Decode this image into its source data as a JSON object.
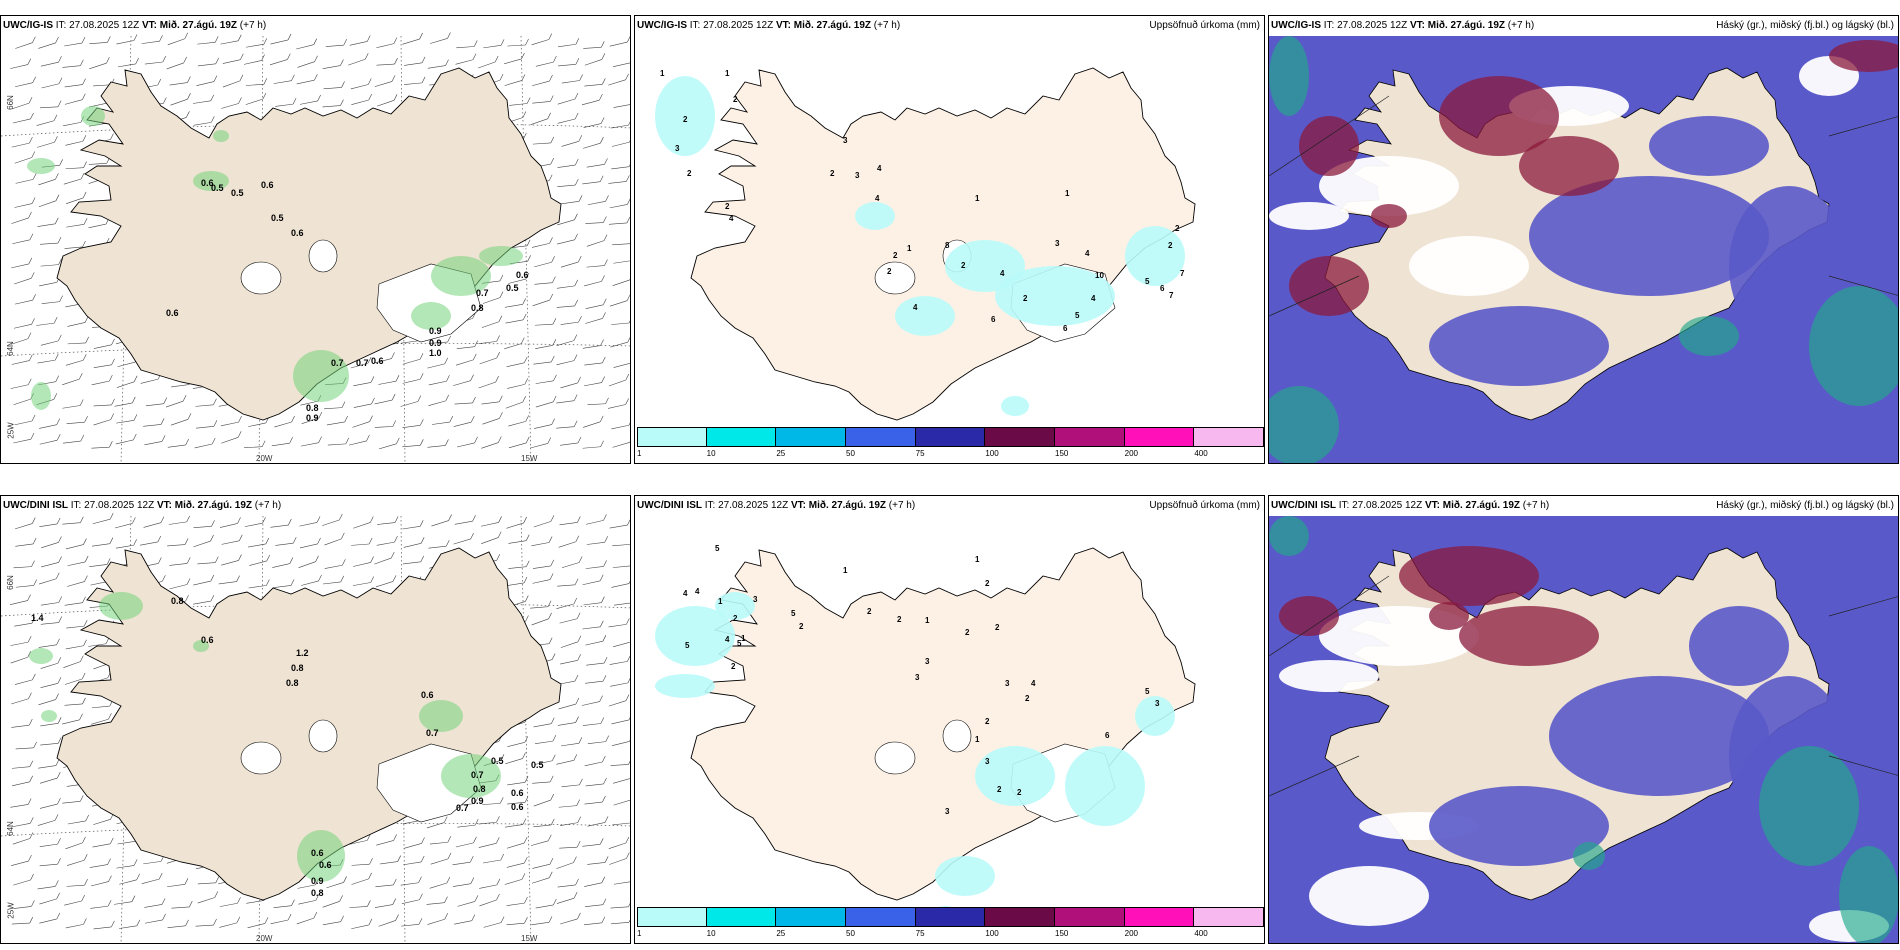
{
  "rows": [
    {
      "model": "UWC/IG-IS",
      "init_label": "IT:",
      "init_time": "27.08.2025 12Z",
      "valid_label": "VT:",
      "valid_time": "Mið. 27.ágú. 19Z",
      "lead": "(+7 h)",
      "wind": {
        "numbers": [
          "0.5",
          "0.6",
          "0.6",
          "0.5",
          "0.5",
          "0.6",
          "0.6",
          "0.5",
          "0.6",
          "0.8",
          "0.7",
          "0.9",
          "0.9",
          "1.0",
          "0.7",
          "0.7",
          "0.6",
          "0.8",
          "0.9"
        ]
      },
      "precip": {
        "title": "Uppsöfnuð úrkoma (mm)",
        "numbers": [
          "1",
          "1",
          "2",
          "2",
          "3",
          "2",
          "2",
          "4",
          "3",
          "2",
          "3",
          "4",
          "4",
          "1",
          "2",
          "1",
          "2",
          "8",
          "2",
          "4",
          "6",
          "4",
          "2",
          "1",
          "3",
          "10",
          "4",
          "5",
          "5",
          "6",
          "7",
          "7",
          "2",
          "2",
          "4",
          "6"
        ]
      },
      "cloud": {
        "title": "Háský (gr.), miðský (fj.bl.) og lágský (bl.)"
      }
    },
    {
      "model": "UWC/DINI ISL",
      "init_label": "IT:",
      "init_time": "27.08.2025 12Z",
      "valid_label": "VT:",
      "valid_time": "Mið. 27.ágú. 19Z",
      "lead": "(+7 h)",
      "wind": {
        "numbers": [
          "0.8",
          "0.6",
          "1.4",
          "1.2",
          "0.8",
          "0.8",
          "0.6",
          "0.7",
          "0.5",
          "0.5",
          "0.7",
          "0.8",
          "0.9",
          "0.6",
          "0.7",
          "0.6",
          "0.6",
          "0.6",
          "0.9",
          "0.8"
        ]
      },
      "precip": {
        "title": "Uppsöfnuð úrkoma (mm)",
        "numbers": [
          "5",
          "4",
          "4",
          "5",
          "4",
          "1",
          "2",
          "1",
          "5",
          "2",
          "3",
          "5",
          "2",
          "1",
          "2",
          "2",
          "1",
          "2",
          "2",
          "2",
          "1",
          "3",
          "4",
          "3",
          "3",
          "2",
          "1",
          "3",
          "2",
          "3",
          "2",
          "2",
          "6",
          "5",
          "3"
        ]
      },
      "cloud": {
        "title": "Háský (gr.), miðský (fj.bl.) og lágský (bl.)"
      }
    }
  ],
  "axes": {
    "lat_top": "66N",
    "lat_bottom": "64N",
    "lon_left": "25W",
    "lon_mid": "20W",
    "lon_right": "15W"
  },
  "colorbar": {
    "ticks": [
      "1",
      "10",
      "25",
      "50",
      "75",
      "100",
      "150",
      "200",
      "400"
    ],
    "colors": [
      "#b9fbf9",
      "#00e8e8",
      "#00b8e8",
      "#3a62e8",
      "#2a2aa8",
      "#6a0a46",
      "#b0107a",
      "#ff10b8",
      "#f6b8ef"
    ]
  },
  "colors": {
    "land": "#efe3d3",
    "precip_land": "#fdf1e6",
    "coast": "#000000",
    "wind_green": "#74d47c",
    "cloud_blue": "#5a59c9",
    "cloud_high": "#8b1a3c",
    "cloud_teal": "#22a98a"
  }
}
